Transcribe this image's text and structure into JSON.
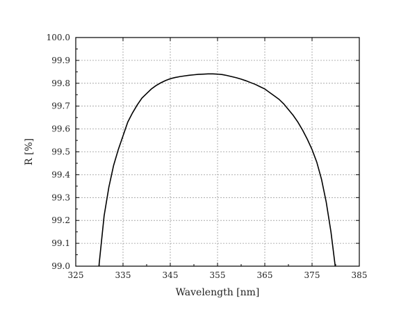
{
  "chart_data": {
    "type": "line",
    "title": "",
    "xlabel": "Wavelength [nm]",
    "ylabel": "R [%]",
    "xlim": [
      325,
      385
    ],
    "ylim": [
      99.0,
      100.0
    ],
    "xticks": [
      325,
      335,
      345,
      355,
      365,
      375,
      385
    ],
    "yticks": [
      99.0,
      99.1,
      99.2,
      99.3,
      99.4,
      99.5,
      99.6,
      99.7,
      99.8,
      99.9,
      100.0
    ],
    "xtick_labels": [
      "325",
      "335",
      "345",
      "355",
      "365",
      "375",
      "385"
    ],
    "ytick_labels": [
      "99.0",
      "99.1",
      "99.2",
      "99.3",
      "99.4",
      "99.5",
      "99.6",
      "99.7",
      "99.8",
      "99.9",
      "100.0"
    ],
    "grid": true,
    "legend": "none",
    "series": [
      {
        "x": [
          329.9,
          331,
          332,
          333,
          334,
          335,
          336,
          337,
          338,
          339,
          340,
          341,
          342,
          343,
          344,
          345,
          346,
          347,
          348,
          349,
          350,
          351,
          352,
          353,
          354,
          355,
          356,
          357,
          358,
          359,
          360,
          361,
          362,
          363,
          364,
          365,
          366,
          367,
          368,
          369,
          370,
          371,
          372,
          373,
          374,
          375,
          376,
          377,
          378,
          379,
          379.9
        ],
        "y": [
          99.0,
          99.22,
          99.345,
          99.44,
          99.51,
          99.57,
          99.63,
          99.67,
          99.705,
          99.735,
          99.755,
          99.775,
          99.79,
          99.802,
          99.812,
          99.82,
          99.825,
          99.829,
          99.832,
          99.835,
          99.837,
          99.839,
          99.84,
          99.841,
          99.841,
          99.84,
          99.838,
          99.834,
          99.829,
          99.824,
          99.818,
          99.811,
          99.803,
          99.795,
          99.785,
          99.775,
          99.76,
          99.745,
          99.73,
          99.71,
          99.685,
          99.66,
          99.63,
          99.595,
          99.555,
          99.51,
          99.455,
          99.38,
          99.28,
          99.15,
          99.0
        ],
        "color": "#000000"
      }
    ]
  }
}
